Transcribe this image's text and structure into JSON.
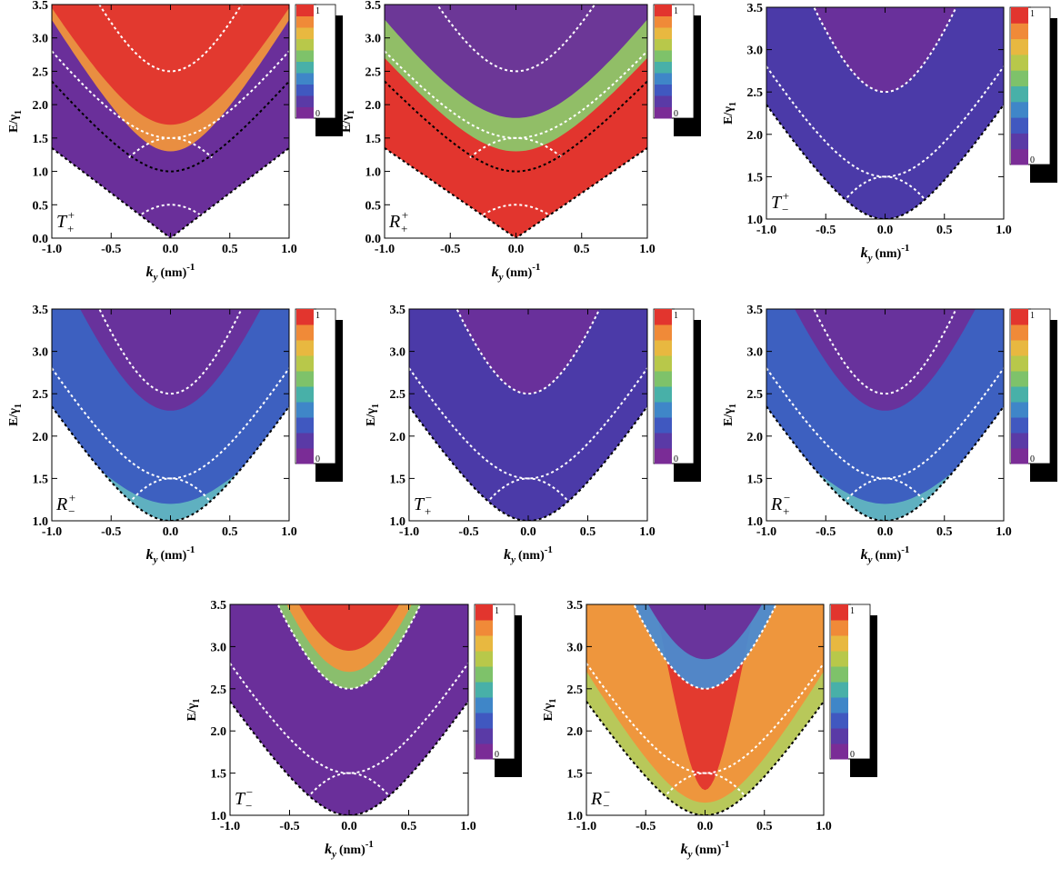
{
  "chart_data": [
    {
      "type": "density",
      "panel_label": {
        "text": "T",
        "sub": "+",
        "sup": "+"
      },
      "x_label": {
        "var": "k",
        "sub": "y",
        "unit": "(nm)",
        "sup": "-1"
      },
      "y_label": {
        "var": "E/γ",
        "sub": "1"
      },
      "xlim": [
        -1,
        1
      ],
      "ylim": [
        0,
        3.5
      ],
      "xticks": [
        {
          "value": -1,
          "label": "-1.0"
        },
        -0.5,
        {
          "value": 0,
          "label": "0.0"
        },
        0.5,
        {
          "value": 1,
          "label": "1.0"
        }
      ],
      "yticks": [
        {
          "value": 0,
          "label": "0.0"
        },
        0.5,
        {
          "value": 1,
          "label": "1.0"
        },
        1.5,
        {
          "value": 2,
          "label": "2.0"
        },
        2.5,
        {
          "value": 3,
          "label": "3.0"
        },
        3.5
      ],
      "colorbar": {
        "lim": [
          0,
          1
        ],
        "ticks": [
          1,
          0
        ]
      }
    },
    {
      "type": "density",
      "panel_label": {
        "text": "R",
        "sub": "+",
        "sup": "+"
      },
      "x_label": {
        "var": "k",
        "sub": "y",
        "unit": "(nm)",
        "sup": "-1"
      },
      "y_label": {
        "var": "E/γ",
        "sub": "1"
      },
      "xlim": [
        -1,
        1
      ],
      "ylim": [
        0,
        3.5
      ],
      "xticks": [
        {
          "value": -1,
          "label": "-1.0"
        },
        -0.5,
        {
          "value": 0,
          "label": "0.0"
        },
        0.5,
        {
          "value": 1,
          "label": "1.0"
        }
      ],
      "yticks": [
        {
          "value": 0,
          "label": "0.0"
        },
        0.5,
        {
          "value": 1,
          "label": "1.0"
        },
        1.5,
        {
          "value": 2,
          "label": "2.0"
        },
        2.5,
        {
          "value": 3,
          "label": "3.0"
        },
        3.5
      ],
      "colorbar": {
        "lim": [
          0,
          1
        ],
        "ticks": [
          1,
          0
        ]
      }
    },
    {
      "type": "density",
      "panel_label": {
        "text": "T",
        "sub": "−",
        "sup": "+"
      },
      "x_label": {
        "var": "k",
        "sub": "y",
        "unit": "(nm)",
        "sup": "-1"
      },
      "y_label": {
        "var": "E/γ",
        "sub": "1"
      },
      "xlim": [
        -1,
        1
      ],
      "ylim": [
        1,
        3.5
      ],
      "xticks": [
        {
          "value": -1,
          "label": "-1.0"
        },
        -0.5,
        {
          "value": 0,
          "label": "0.0"
        },
        0.5,
        {
          "value": 1,
          "label": "1.0"
        }
      ],
      "yticks": [
        {
          "value": 1,
          "label": "1.0"
        },
        1.5,
        {
          "value": 2,
          "label": "2.0"
        },
        2.5,
        {
          "value": 3,
          "label": "3.0"
        },
        3.5
      ],
      "colorbar": {
        "lim": [
          0,
          1
        ],
        "ticks": [
          1,
          0
        ]
      }
    },
    {
      "type": "density",
      "panel_label": {
        "text": "R",
        "sub": "−",
        "sup": "+"
      },
      "x_label": {
        "var": "k",
        "sub": "y",
        "unit": "(nm)",
        "sup": "-1"
      },
      "y_label": {
        "var": "E/γ",
        "sub": "1"
      },
      "xlim": [
        -1,
        1
      ],
      "ylim": [
        1,
        3.5
      ],
      "xticks": [
        {
          "value": -1,
          "label": "-1.0"
        },
        -0.5,
        {
          "value": 0,
          "label": "0.0"
        },
        0.5,
        {
          "value": 1,
          "label": "1.0"
        }
      ],
      "yticks": [
        {
          "value": 1,
          "label": "1.0"
        },
        1.5,
        {
          "value": 2,
          "label": "2.0"
        },
        2.5,
        {
          "value": 3,
          "label": "3.0"
        },
        3.5
      ],
      "colorbar": {
        "lim": [
          0,
          1
        ],
        "ticks": [
          1,
          0
        ]
      }
    },
    {
      "type": "density",
      "panel_label": {
        "text": "T",
        "sub": "+",
        "sup": "−"
      },
      "x_label": {
        "var": "k",
        "sub": "y",
        "unit": "(nm)",
        "sup": "-1"
      },
      "y_label": {
        "var": "E/γ",
        "sub": "1"
      },
      "xlim": [
        -1,
        1
      ],
      "ylim": [
        1,
        3.5
      ],
      "xticks": [
        {
          "value": -1,
          "label": "-1.0"
        },
        -0.5,
        {
          "value": 0,
          "label": "0.0"
        },
        0.5,
        {
          "value": 1,
          "label": "1.0"
        }
      ],
      "yticks": [
        {
          "value": 1,
          "label": "1.0"
        },
        1.5,
        {
          "value": 2,
          "label": "2.0"
        },
        2.5,
        {
          "value": 3,
          "label": "3.0"
        },
        3.5
      ],
      "colorbar": {
        "lim": [
          0,
          1
        ],
        "ticks": [
          1,
          0
        ]
      }
    },
    {
      "type": "density",
      "panel_label": {
        "text": "R",
        "sub": "+",
        "sup": "−"
      },
      "x_label": {
        "var": "k",
        "sub": "y",
        "unit": "(nm)",
        "sup": "-1"
      },
      "y_label": {
        "var": "E/γ",
        "sub": "1"
      },
      "xlim": [
        -1,
        1
      ],
      "ylim": [
        1,
        3.5
      ],
      "xticks": [
        {
          "value": -1,
          "label": "-1.0"
        },
        -0.5,
        {
          "value": 0,
          "label": "0.0"
        },
        0.5,
        {
          "value": 1,
          "label": "1.0"
        }
      ],
      "yticks": [
        {
          "value": 1,
          "label": "1.0"
        },
        1.5,
        {
          "value": 2,
          "label": "2.0"
        },
        2.5,
        {
          "value": 3,
          "label": "3.0"
        },
        3.5
      ],
      "colorbar": {
        "lim": [
          0,
          1
        ],
        "ticks": [
          1,
          0
        ]
      }
    },
    {
      "type": "density",
      "panel_label": {
        "text": "T",
        "sub": "−",
        "sup": "−"
      },
      "x_label": {
        "var": "k",
        "sub": "y",
        "unit": "(nm)",
        "sup": "-1"
      },
      "y_label": {
        "var": "E/γ",
        "sub": "1"
      },
      "xlim": [
        -1,
        1
      ],
      "ylim": [
        1,
        3.5
      ],
      "xticks": [
        {
          "value": -1,
          "label": "-1.0"
        },
        -0.5,
        {
          "value": 0,
          "label": "0.0"
        },
        0.5,
        {
          "value": 1,
          "label": "1.0"
        }
      ],
      "yticks": [
        {
          "value": 1,
          "label": "1.0"
        },
        1.5,
        {
          "value": 2,
          "label": "2.0"
        },
        2.5,
        {
          "value": 3,
          "label": "3.0"
        },
        3.5
      ],
      "colorbar": {
        "lim": [
          0,
          1
        ],
        "ticks": [
          1,
          0
        ]
      }
    },
    {
      "type": "density",
      "panel_label": {
        "text": "R",
        "sub": "−",
        "sup": "−"
      },
      "x_label": {
        "var": "k",
        "sub": "y",
        "unit": "(nm)",
        "sup": "-1"
      },
      "y_label": {
        "var": "E/γ",
        "sub": "1"
      },
      "xlim": [
        -1,
        1
      ],
      "ylim": [
        1,
        3.5
      ],
      "xticks": [
        {
          "value": -1,
          "label": "-1.0"
        },
        -0.5,
        {
          "value": 0,
          "label": "0.0"
        },
        0.5,
        {
          "value": 1,
          "label": "1.0"
        }
      ],
      "yticks": [
        {
          "value": 1,
          "label": "1.0"
        },
        1.5,
        {
          "value": 2,
          "label": "2.0"
        },
        2.5,
        {
          "value": 3,
          "label": "3.0"
        },
        3.5
      ],
      "colorbar": {
        "lim": [
          0,
          1
        ],
        "ticks": [
          1,
          0
        ]
      }
    }
  ]
}
